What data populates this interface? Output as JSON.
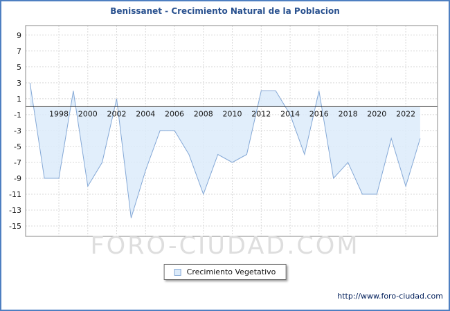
{
  "window": {
    "frame_color": "#4e7fc1",
    "watermark": "FORO-CIUDAD.COM",
    "footer_url": "http://www.foro-ciudad.com"
  },
  "legend": {
    "label": "Crecimiento Vegetativo"
  },
  "chart_data": {
    "type": "area",
    "title": "Benissanet - Crecimiento Natural de la Poblacion",
    "series_name": "Crecimiento Vegetativo",
    "x": [
      1996,
      1997,
      1998,
      1999,
      2000,
      2001,
      2002,
      2003,
      2004,
      2005,
      2006,
      2007,
      2008,
      2009,
      2010,
      2011,
      2012,
      2013,
      2014,
      2015,
      2016,
      2017,
      2018,
      2019,
      2020,
      2021,
      2022,
      2023
    ],
    "values": [
      3,
      -9,
      -9,
      2,
      -10,
      -7,
      1,
      -14,
      -8,
      -3,
      -3,
      -6,
      -11,
      -6,
      -7,
      -6,
      2,
      2,
      -1,
      -6,
      2,
      -9,
      -7,
      -11,
      -11,
      -4,
      -10,
      -4
    ],
    "xlabel": "",
    "ylabel": "",
    "xlim": [
      1995.7,
      2024.2
    ],
    "ylim": [
      -16.3,
      10.2
    ],
    "x_ticks": [
      1998,
      2000,
      2002,
      2004,
      2006,
      2008,
      2010,
      2012,
      2014,
      2016,
      2018,
      2020,
      2022
    ],
    "y_ticks": [
      9,
      7,
      5,
      3,
      1,
      -1,
      -3,
      -5,
      -7,
      -9,
      -11,
      -13,
      -15
    ],
    "grid": true,
    "legend_position": "bottom-center",
    "line_color": "#84a8d6",
    "fill_color": "#dcebfa",
    "zero_line_color": "#333333"
  }
}
